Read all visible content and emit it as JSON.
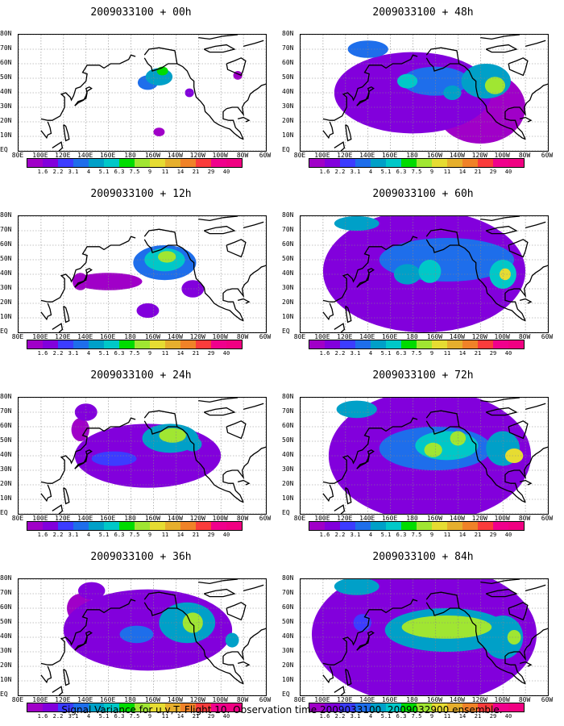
{
  "panels": [
    {
      "title": "2009033100 + 00h",
      "col": 0,
      "row": 0,
      "blobs": [
        {
          "x": -155,
          "y": 51,
          "rx": 12,
          "ry": 6,
          "level": 4
        },
        {
          "x": -165,
          "y": 47,
          "rx": 9,
          "ry": 5,
          "level": 3
        },
        {
          "x": -152,
          "y": 55,
          "rx": 5,
          "ry": 3,
          "level": 6
        },
        {
          "x": -128,
          "y": 40,
          "rx": 4,
          "ry": 3,
          "level": 1
        },
        {
          "x": -155,
          "y": 13,
          "rx": 5,
          "ry": 3,
          "level": 0
        },
        {
          "x": -85,
          "y": 52,
          "rx": 4,
          "ry": 3,
          "level": 0
        }
      ]
    },
    {
      "title": "2009033100 + 48h",
      "col": 1,
      "row": 0,
      "blobs": [
        {
          "x": -180,
          "y": 40,
          "rx": 70,
          "ry": 28,
          "level": 1
        },
        {
          "x": -120,
          "y": 30,
          "rx": 40,
          "ry": 25,
          "level": 0
        },
        {
          "x": -160,
          "y": 48,
          "rx": 30,
          "ry": 10,
          "level": 3
        },
        {
          "x": -115,
          "y": 48,
          "rx": 22,
          "ry": 12,
          "level": 4
        },
        {
          "x": -107,
          "y": 45,
          "rx": 9,
          "ry": 6,
          "level": 7
        },
        {
          "x": -185,
          "y": 48,
          "rx": 9,
          "ry": 5,
          "level": 5
        },
        {
          "x": -145,
          "y": 40,
          "rx": 8,
          "ry": 5,
          "level": 4
        },
        {
          "x": -220,
          "y": 70,
          "rx": 18,
          "ry": 6,
          "level": 3
        }
      ]
    },
    {
      "title": "2009033100 + 12h",
      "col": 0,
      "row": 1,
      "blobs": [
        {
          "x": -150,
          "y": 48,
          "rx": 28,
          "ry": 12,
          "level": 3
        },
        {
          "x": -150,
          "y": 50,
          "rx": 18,
          "ry": 8,
          "level": 5
        },
        {
          "x": -148,
          "y": 52,
          "rx": 8,
          "ry": 4,
          "level": 7
        },
        {
          "x": -200,
          "y": 35,
          "rx": 30,
          "ry": 6,
          "level": 0
        },
        {
          "x": -125,
          "y": 30,
          "rx": 10,
          "ry": 6,
          "level": 1
        },
        {
          "x": -165,
          "y": 15,
          "rx": 10,
          "ry": 5,
          "level": 1
        },
        {
          "x": -225,
          "y": 35,
          "rx": 7,
          "ry": 6,
          "level": 0
        }
      ]
    },
    {
      "title": "2009033100 + 60h",
      "col": 1,
      "row": 1,
      "blobs": [
        {
          "x": -170,
          "y": 42,
          "rx": 90,
          "ry": 42,
          "level": 1
        },
        {
          "x": -150,
          "y": 50,
          "rx": 60,
          "ry": 15,
          "level": 3
        },
        {
          "x": -185,
          "y": 40,
          "rx": 12,
          "ry": 7,
          "level": 4
        },
        {
          "x": -165,
          "y": 42,
          "rx": 10,
          "ry": 8,
          "level": 5
        },
        {
          "x": -100,
          "y": 40,
          "rx": 12,
          "ry": 10,
          "level": 5
        },
        {
          "x": -98,
          "y": 40,
          "rx": 5,
          "ry": 4,
          "level": 8
        },
        {
          "x": -230,
          "y": 75,
          "rx": 20,
          "ry": 5,
          "level": 4
        },
        {
          "x": -150,
          "y": 12,
          "rx": 25,
          "ry": 6,
          "level": 0
        }
      ]
    },
    {
      "title": "2009033100 + 24h",
      "col": 0,
      "row": 2,
      "blobs": [
        {
          "x": -165,
          "y": 40,
          "rx": 65,
          "ry": 22,
          "level": 1
        },
        {
          "x": -145,
          "y": 52,
          "rx": 25,
          "ry": 10,
          "level": 4
        },
        {
          "x": -143,
          "y": 54,
          "rx": 12,
          "ry": 5,
          "level": 7
        },
        {
          "x": -195,
          "y": 38,
          "rx": 20,
          "ry": 5,
          "level": 2
        },
        {
          "x": -125,
          "y": 48,
          "rx": 8,
          "ry": 5,
          "level": 4
        },
        {
          "x": -225,
          "y": 58,
          "rx": 8,
          "ry": 8,
          "level": 0
        },
        {
          "x": -220,
          "y": 70,
          "rx": 10,
          "ry": 6,
          "level": 1
        }
      ]
    },
    {
      "title": "2009033100 + 72h",
      "col": 1,
      "row": 2,
      "blobs": [
        {
          "x": -165,
          "y": 40,
          "rx": 90,
          "ry": 45,
          "level": 1
        },
        {
          "x": -160,
          "y": 45,
          "rx": 50,
          "ry": 15,
          "level": 3
        },
        {
          "x": -150,
          "y": 47,
          "rx": 28,
          "ry": 10,
          "level": 5
        },
        {
          "x": -162,
          "y": 44,
          "rx": 8,
          "ry": 5,
          "level": 7
        },
        {
          "x": -140,
          "y": 52,
          "rx": 7,
          "ry": 5,
          "level": 7
        },
        {
          "x": -100,
          "y": 45,
          "rx": 15,
          "ry": 12,
          "level": 4
        },
        {
          "x": -90,
          "y": 40,
          "rx": 8,
          "ry": 5,
          "level": 8
        },
        {
          "x": -230,
          "y": 72,
          "rx": 18,
          "ry": 6,
          "level": 4
        }
      ]
    },
    {
      "title": "2009033100 + 36h",
      "col": 0,
      "row": 3,
      "blobs": [
        {
          "x": -165,
          "y": 45,
          "rx": 75,
          "ry": 28,
          "level": 1
        },
        {
          "x": -130,
          "y": 50,
          "rx": 25,
          "ry": 14,
          "level": 4
        },
        {
          "x": -125,
          "y": 50,
          "rx": 9,
          "ry": 7,
          "level": 7
        },
        {
          "x": -175,
          "y": 42,
          "rx": 15,
          "ry": 6,
          "level": 3
        },
        {
          "x": -90,
          "y": 38,
          "rx": 6,
          "ry": 5,
          "level": 4
        },
        {
          "x": -225,
          "y": 60,
          "rx": 12,
          "ry": 10,
          "level": 0
        },
        {
          "x": -215,
          "y": 72,
          "rx": 12,
          "ry": 6,
          "level": 1
        }
      ]
    },
    {
      "title": "2009033100 + 84h",
      "col": 1,
      "row": 3,
      "blobs": [
        {
          "x": -170,
          "y": 42,
          "rx": 100,
          "ry": 48,
          "level": 1
        },
        {
          "x": -150,
          "y": 45,
          "rx": 55,
          "ry": 15,
          "level": 4
        },
        {
          "x": -150,
          "y": 47,
          "rx": 40,
          "ry": 8,
          "level": 7
        },
        {
          "x": -100,
          "y": 40,
          "rx": 18,
          "ry": 15,
          "level": 4
        },
        {
          "x": -90,
          "y": 40,
          "rx": 6,
          "ry": 5,
          "level": 7
        },
        {
          "x": -230,
          "y": 75,
          "rx": 20,
          "ry": 6,
          "level": 4
        },
        {
          "x": -225,
          "y": 50,
          "rx": 8,
          "ry": 6,
          "level": 2
        }
      ]
    }
  ],
  "lat_labels": [
    "80N",
    "70N",
    "60N",
    "50N",
    "40N",
    "30N",
    "20N",
    "10N",
    "EQ"
  ],
  "lat_values": [
    80,
    70,
    60,
    50,
    40,
    30,
    20,
    10,
    0
  ],
  "lon_labels": [
    "80E",
    "100E",
    "120E",
    "140E",
    "160E",
    "180",
    "160W",
    "140W",
    "120W",
    "100W",
    "80W",
    "60W"
  ],
  "lon_values": [
    80,
    100,
    120,
    140,
    160,
    180,
    200,
    220,
    240,
    260,
    280,
    300
  ],
  "colorbar": {
    "colors": [
      "#a000c8",
      "#8200dc",
      "#3c3cff",
      "#1e6eeb",
      "#00a0c8",
      "#00c8c8",
      "#00dc00",
      "#a0e632",
      "#e6dc32",
      "#e6af2d",
      "#f08228",
      "#fa3c3c",
      "#f0008c",
      "#f00082"
    ],
    "labels": [
      "1.6",
      "2.2",
      "3.1",
      "4",
      "5.1",
      "6.3",
      "7.5",
      "9",
      "11",
      "14",
      "21",
      "29",
      "40"
    ]
  },
  "caption": "Signal Variance for u,v,T. Flight 10. Observation time 2009033100. 2009032900 ensemble."
}
